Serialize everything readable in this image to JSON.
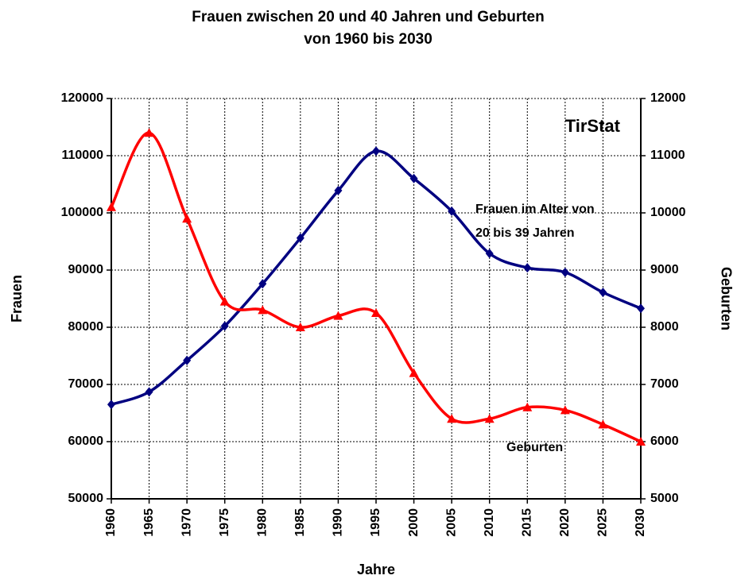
{
  "chart_data": {
    "type": "line",
    "title": [
      "Frauen zwischen 20 und 40 Jahren und Geburten",
      "von 1960 bis 2030"
    ],
    "xlabel": "Jahre",
    "ylabel": "Frauen",
    "y2label": "Geburten",
    "annotations": [
      "TirStat",
      "Frauen im Alter von",
      "20 bis 39 Jahren"
    ],
    "x": [
      1960,
      1965,
      1970,
      1975,
      1980,
      1985,
      1990,
      1995,
      2000,
      2005,
      2010,
      2015,
      2020,
      2025,
      2030
    ],
    "xlim": [
      1960,
      2030
    ],
    "xticks": [
      1960,
      1965,
      1970,
      1975,
      1980,
      1985,
      1990,
      1995,
      2000,
      2005,
      2010,
      2015,
      2020,
      2025,
      2030
    ],
    "ylim": [
      50000,
      120000
    ],
    "yticks": [
      50000,
      60000,
      70000,
      80000,
      90000,
      100000,
      110000,
      120000
    ],
    "y2lim": [
      5000,
      12000
    ],
    "y2ticks": [
      5000,
      6000,
      7000,
      8000,
      9000,
      10000,
      11000,
      12000
    ],
    "grid": true,
    "series": [
      {
        "color": "#000080",
        "marker": "diamond",
        "values": [
          66500,
          68700,
          74200,
          80200,
          87600,
          95600,
          103900,
          110800,
          106000,
          100300,
          92900,
          90400,
          89600,
          86100,
          83300
        ]
      },
      {
        "name": "Geburten",
        "color": "#ff0000",
        "marker": "triangle",
        "axis": "y2",
        "values": [
          10100,
          11400,
          9900,
          8450,
          8300,
          8000,
          8200,
          8250,
          7200,
          6400,
          6400,
          6600,
          6550,
          6300,
          6000
        ]
      }
    ]
  }
}
